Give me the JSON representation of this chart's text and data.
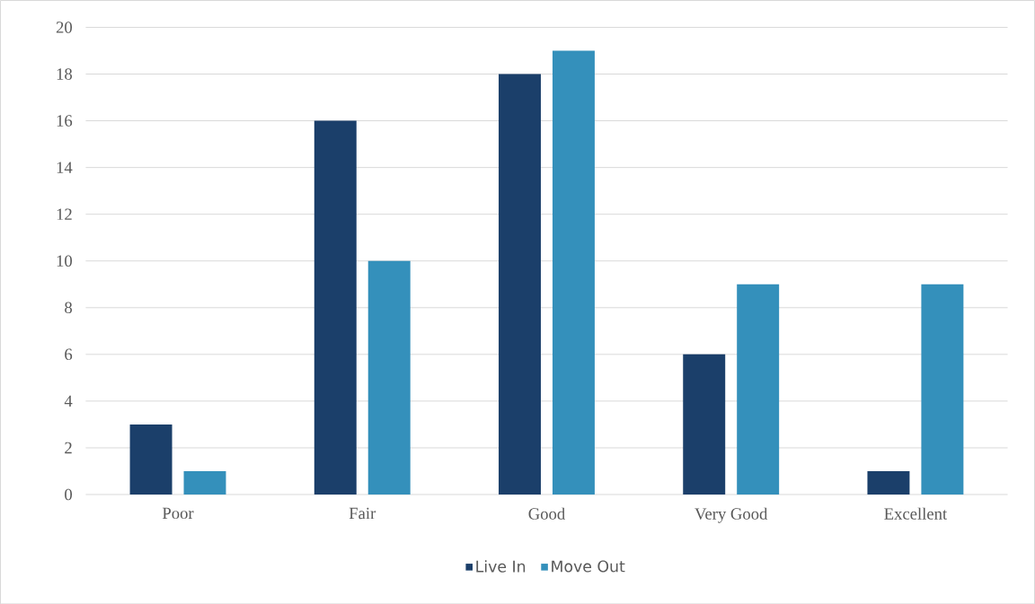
{
  "chart_data": {
    "type": "bar",
    "categories": [
      "Poor",
      "Fair",
      "Good",
      "Very Good",
      "Excellent"
    ],
    "series": [
      {
        "name": "Live In",
        "color": "#1b3f6a",
        "values": [
          3,
          16,
          18,
          6,
          1
        ]
      },
      {
        "name": "Move Out",
        "color": "#3490bb",
        "values": [
          1,
          10,
          19,
          9,
          9
        ]
      }
    ],
    "ylim": [
      0,
      20
    ],
    "yticks": [
      0,
      2,
      4,
      6,
      8,
      10,
      12,
      14,
      16,
      18,
      20
    ],
    "grid": "y",
    "legend": "bottom"
  }
}
